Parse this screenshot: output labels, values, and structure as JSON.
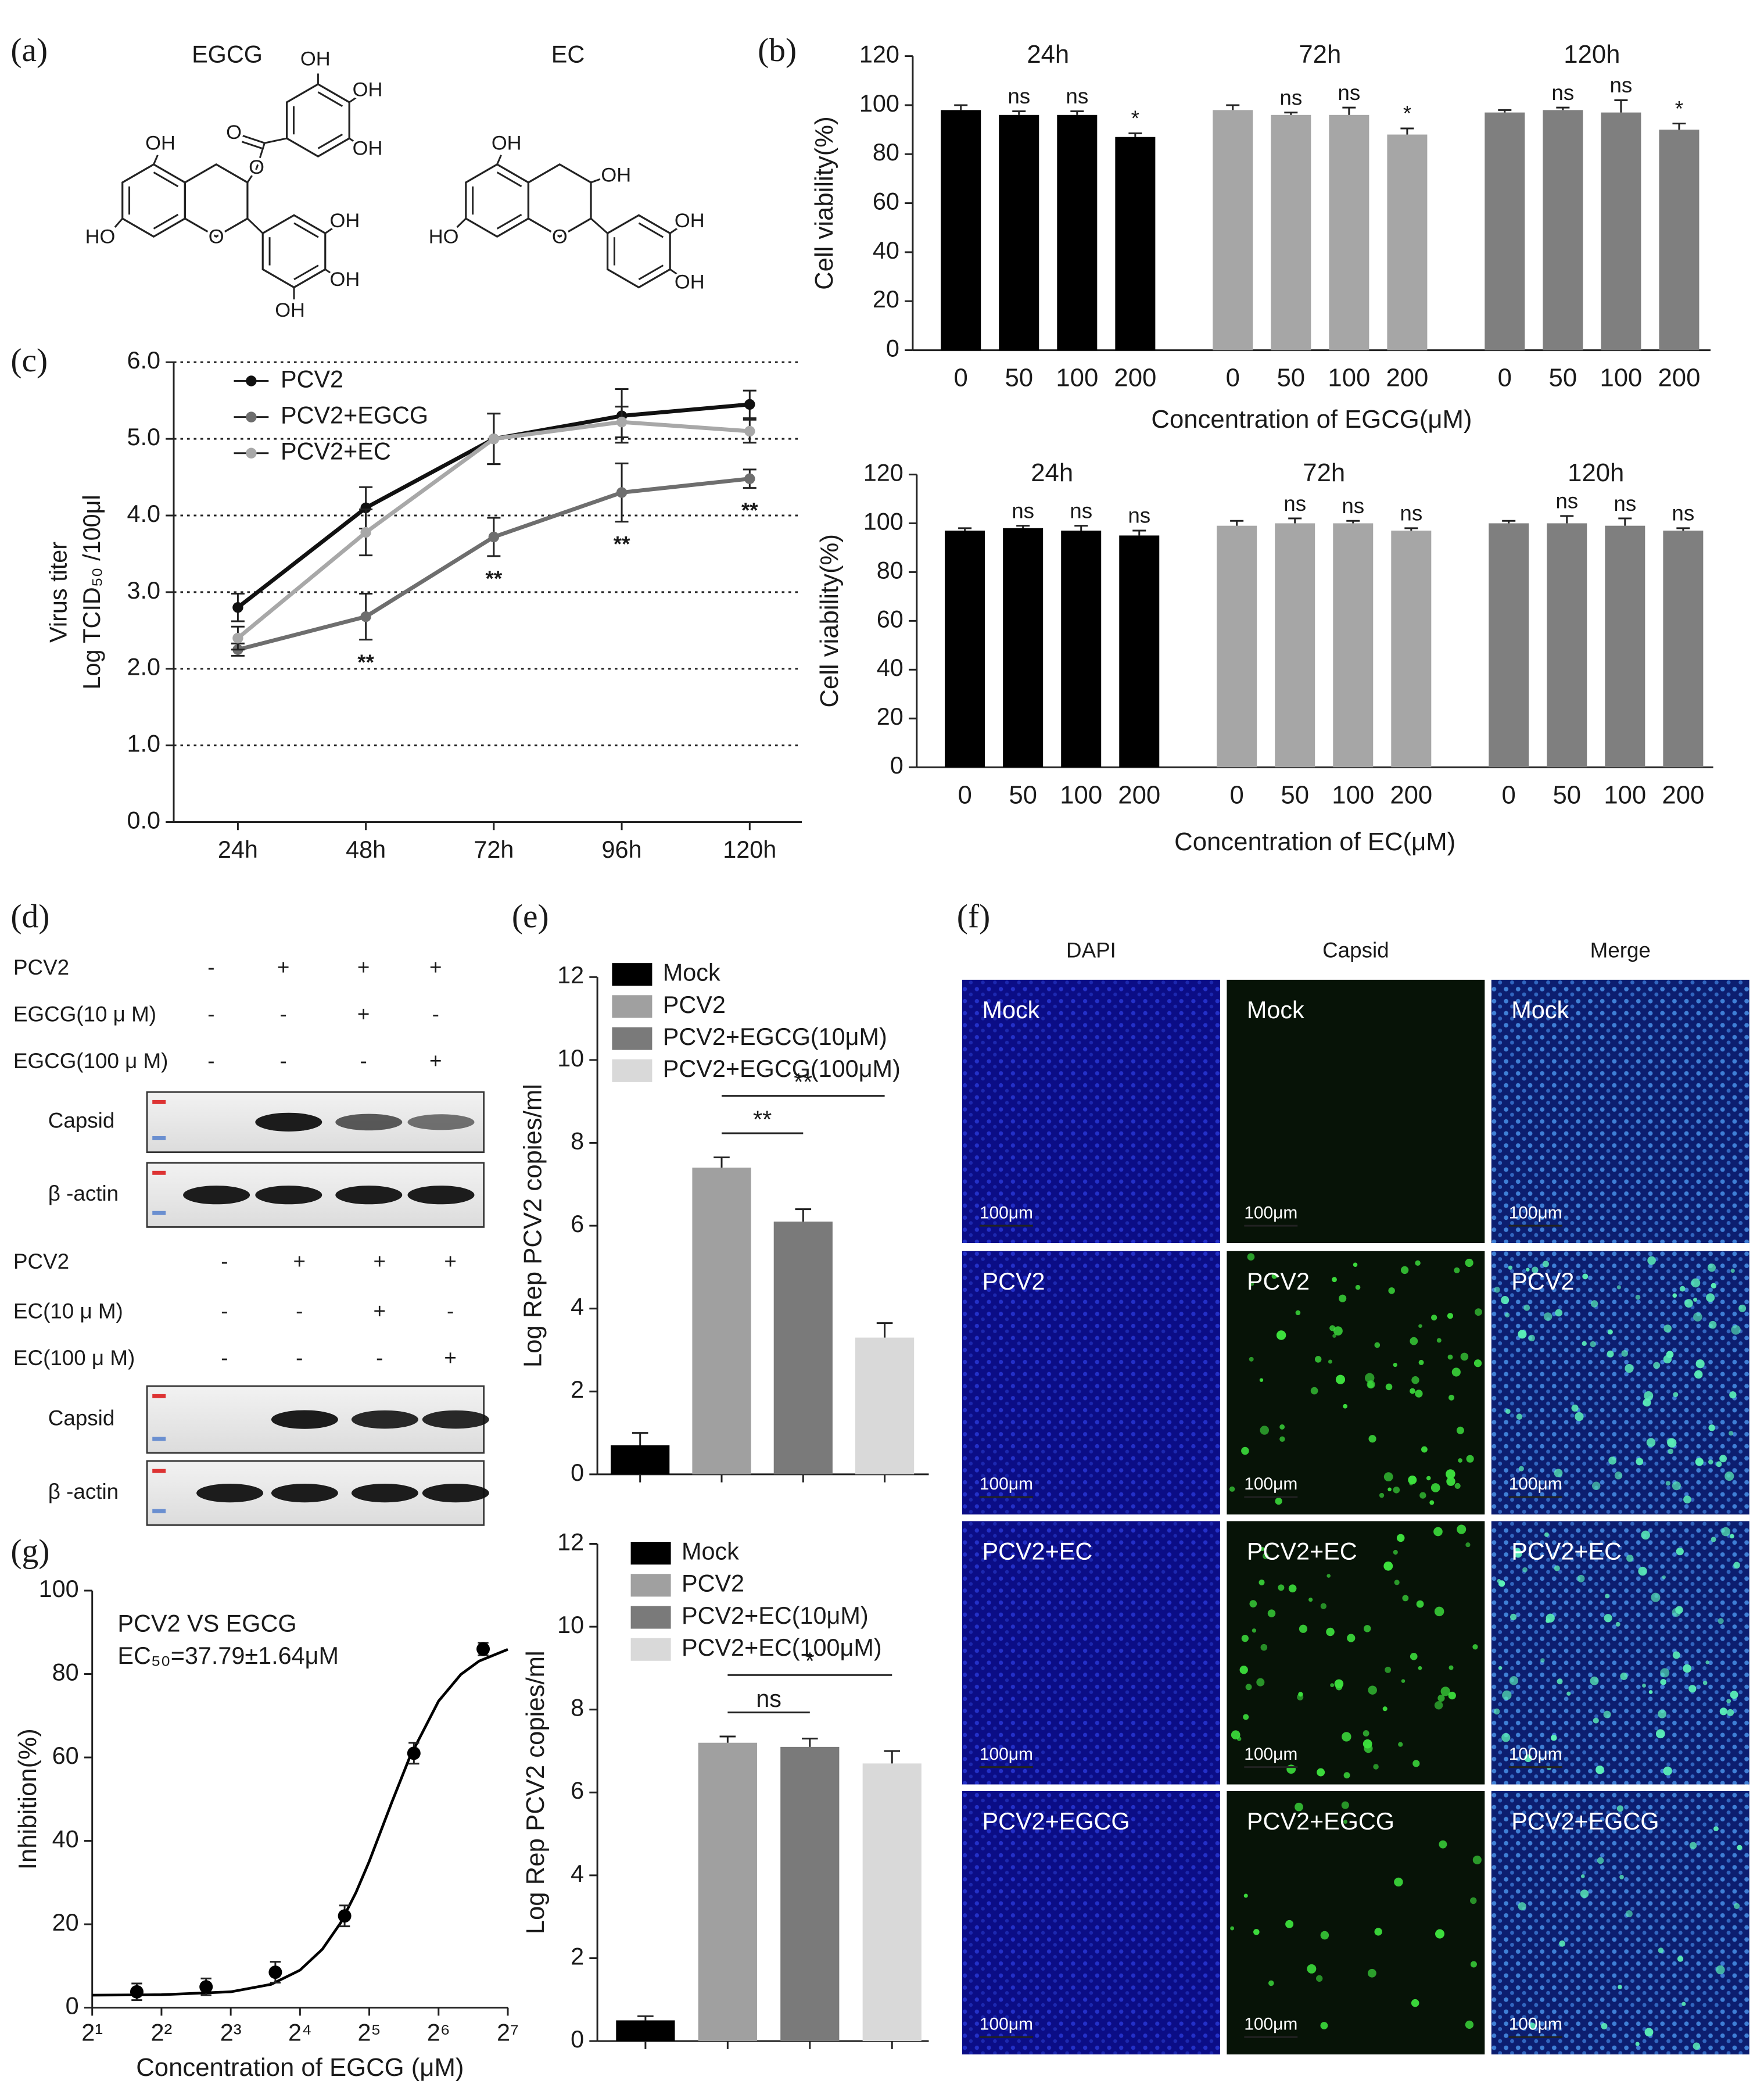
{
  "panels": [
    "(a)",
    "(b)",
    "(c)",
    "(d)",
    "(e)",
    "(f)",
    "(g)"
  ],
  "structures": [
    {
      "name": "EGCG",
      "labels": [
        "OH",
        "HO",
        "O",
        "O",
        "O",
        "OH",
        "OH",
        "OH",
        "OH",
        "OH",
        "OH"
      ]
    },
    {
      "name": "EC",
      "labels": [
        "OH",
        "HO",
        "O",
        "OH",
        "OH",
        "OH"
      ]
    }
  ],
  "western": [
    {
      "rows": [
        {
          "label": "PCV2",
          "signs": [
            "-",
            "+",
            "+",
            "+"
          ]
        },
        {
          "label": "EGCG(10 μ M)",
          "signs": [
            "-",
            "-",
            "+",
            "-"
          ]
        },
        {
          "label": "EGCG(100 μ M)",
          "signs": [
            "-",
            "-",
            "-",
            "+"
          ]
        }
      ],
      "blots": [
        "Capsid",
        "β -actin"
      ]
    },
    {
      "rows": [
        {
          "label": "PCV2",
          "signs": [
            "-",
            "+",
            "+",
            "+"
          ]
        },
        {
          "label": "EC(10 μ M)",
          "signs": [
            "-",
            "-",
            "+",
            "-"
          ]
        },
        {
          "label": "EC(100 μ M)",
          "signs": [
            "-",
            "-",
            "-",
            "+"
          ]
        }
      ],
      "blots": [
        "Capsid",
        "β -actin"
      ]
    }
  ],
  "microscopy": {
    "columns": [
      "DAPI",
      "Capsid",
      "Merge"
    ],
    "rows": [
      "Mock",
      "PCV2",
      "PCV2+EC",
      "PCV2+EGCG"
    ],
    "scale_bar": "100μm"
  },
  "chart_data": [
    {
      "type": "bar",
      "categories": [
        "0",
        "50",
        "100",
        "200"
      ],
      "series": [
        {
          "name": "24h",
          "color": "#000000",
          "values": [
            98,
            96,
            96,
            87
          ],
          "errors": [
            2,
            1.5,
            1.5,
            1.5
          ],
          "annotations": [
            null,
            "ns",
            "ns",
            "*"
          ]
        },
        {
          "name": "72h",
          "color": "#a6a6a6",
          "values": [
            98,
            96,
            96,
            88
          ],
          "errors": [
            2,
            1,
            3,
            2.5
          ],
          "annotations": [
            null,
            "ns",
            "ns",
            "*"
          ]
        },
        {
          "name": "120h",
          "color": "#7f7f7f",
          "values": [
            97,
            98,
            97,
            90
          ],
          "errors": [
            1,
            1,
            5,
            2.5
          ],
          "annotations": [
            null,
            "ns",
            "ns",
            "*"
          ]
        }
      ],
      "ylabel": "Cell viability(%)",
      "xlabel": "Concentration of EGCG(μM)",
      "ylim": [
        0,
        120
      ],
      "yticks": [
        0,
        20,
        40,
        60,
        80,
        100,
        120
      ]
    },
    {
      "type": "bar",
      "categories": [
        "0",
        "50",
        "100",
        "200"
      ],
      "series": [
        {
          "name": "24h",
          "color": "#000000",
          "values": [
            97,
            98,
            97,
            95
          ],
          "errors": [
            1,
            1,
            2,
            2
          ],
          "annotations": [
            null,
            "ns",
            "ns",
            "ns"
          ]
        },
        {
          "name": "72h",
          "color": "#a6a6a6",
          "values": [
            99,
            100,
            100,
            97
          ],
          "errors": [
            2,
            2,
            1,
            1
          ],
          "annotations": [
            null,
            "ns",
            "ns",
            "ns"
          ]
        },
        {
          "name": "120h",
          "color": "#7f7f7f",
          "values": [
            100,
            100,
            99,
            97
          ],
          "errors": [
            1,
            3,
            3,
            1
          ],
          "annotations": [
            null,
            "ns",
            "ns",
            "ns"
          ]
        }
      ],
      "ylabel": "Cell viability(%)",
      "xlabel": "Concentration of EC(μM)",
      "ylim": [
        0,
        120
      ],
      "yticks": [
        0,
        20,
        40,
        60,
        80,
        100,
        120
      ]
    },
    {
      "type": "line",
      "categories": [
        "24h",
        "48h",
        "72h",
        "96h",
        "120h"
      ],
      "series": [
        {
          "name": "PCV2",
          "color": "#111111",
          "values": [
            2.8,
            4.1,
            5.0,
            5.3,
            5.45
          ],
          "errors": [
            0.18,
            0.27,
            0.33,
            0.35,
            0.18
          ]
        },
        {
          "name": "PCV2+EGCG",
          "color": "#6e6e6e",
          "values": [
            2.25,
            2.68,
            3.72,
            4.3,
            4.48
          ],
          "errors": [
            0.08,
            0.3,
            0.25,
            0.38,
            0.12
          ],
          "annotations": [
            null,
            "**",
            "**",
            "**",
            "**"
          ]
        },
        {
          "name": "PCV2+EC",
          "color": "#a8a8a8",
          "values": [
            2.4,
            3.78,
            5.0,
            5.22,
            5.1
          ],
          "errors": [
            0.15,
            0.3,
            0.33,
            0.2,
            0.15
          ]
        }
      ],
      "ylabel": [
        "Virus titer",
        "Log TCID₅₀ /100μl"
      ],
      "ylim": [
        0,
        6
      ],
      "yticks": [
        {
          "value": 0,
          "label": "0.0"
        },
        {
          "value": 1,
          "label": "1.0"
        },
        {
          "value": 2,
          "label": "2.0"
        },
        {
          "value": 3,
          "label": "3.0"
        },
        {
          "value": 4,
          "label": "4.0"
        },
        {
          "value": 5,
          "label": "5.0"
        },
        {
          "value": 6,
          "label": "6.0"
        }
      ],
      "grid": true,
      "legend": "upper left"
    },
    {
      "type": "bar",
      "series": [
        {
          "name": "Mock",
          "color": "#000000",
          "values": [
            0.7
          ],
          "errors": [
            0.3
          ]
        },
        {
          "name": "PCV2",
          "color": "#a0a0a0",
          "values": [
            7.4
          ],
          "errors": [
            0.25
          ]
        },
        {
          "name": "PCV2+EGCG(10μM)",
          "color": "#7a7a7a",
          "values": [
            6.1
          ],
          "errors": [
            0.3
          ]
        },
        {
          "name": "PCV2+EGCG(100μM)",
          "color": "#d9d9d9",
          "values": [
            3.3
          ],
          "errors": [
            0.35
          ]
        }
      ],
      "ylabel": "Log Rep PCV2 copies/ml",
      "ylim": [
        0,
        12
      ],
      "yticks": [
        0,
        2,
        4,
        6,
        8,
        10,
        12
      ],
      "legend": "upper left",
      "comparisons": [
        {
          "label": "**",
          "between": [
            "PCV2",
            "PCV2+EGCG(10μM)"
          ]
        },
        {
          "label": "**",
          "between": [
            "PCV2",
            "PCV2+EGCG(100μM)"
          ]
        }
      ]
    },
    {
      "type": "bar",
      "series": [
        {
          "name": "Mock",
          "color": "#000000",
          "values": [
            0.5
          ],
          "errors": [
            0.1
          ]
        },
        {
          "name": "PCV2",
          "color": "#a0a0a0",
          "values": [
            7.2
          ],
          "errors": [
            0.15
          ]
        },
        {
          "name": "PCV2+EC(10μM)",
          "color": "#7a7a7a",
          "values": [
            7.1
          ],
          "errors": [
            0.2
          ]
        },
        {
          "name": "PCV2+EC(100μM)",
          "color": "#d9d9d9",
          "values": [
            6.7
          ],
          "errors": [
            0.3
          ]
        }
      ],
      "ylabel": "Log Rep PCV2 copies/ml",
      "ylim": [
        0,
        12
      ],
      "yticks": [
        0,
        2,
        4,
        6,
        8,
        10,
        12
      ],
      "legend": "upper left",
      "comparisons": [
        {
          "label": "ns",
          "between": [
            "PCV2",
            "PCV2+EC(10μM)"
          ]
        },
        {
          "label": "*",
          "between": [
            "PCV2",
            "PCV2+EC(100μM)"
          ]
        }
      ]
    },
    {
      "type": "scatter",
      "title": "PCV2 VS EGCG",
      "subtitle": "EC₅₀=37.79±1.64μM",
      "x": [
        3.125,
        6.25,
        12.5,
        25,
        50,
        100
      ],
      "values": [
        3.8,
        5,
        8.5,
        22,
        61,
        86
      ],
      "errors": [
        2,
        2,
        2.5,
        2.5,
        2.5,
        1.5
      ],
      "color": "#000000",
      "fit": {
        "x": [
          2,
          4,
          8,
          12,
          16,
          20,
          24,
          28,
          32,
          40,
          48,
          64,
          80,
          96,
          128
        ],
        "values": [
          3.0,
          3.1,
          3.8,
          5.6,
          9.0,
          14.0,
          20.3,
          27.6,
          35.1,
          49.1,
          60.1,
          73.5,
          79.9,
          83.1,
          85.9
        ]
      },
      "xscale": "log",
      "xlim": [
        2,
        128
      ],
      "xticks": [
        {
          "value": 2,
          "label": "2¹"
        },
        {
          "value": 4,
          "label": "2²"
        },
        {
          "value": 8,
          "label": "2³"
        },
        {
          "value": 16,
          "label": "2⁴"
        },
        {
          "value": 32,
          "label": "2⁵"
        },
        {
          "value": 64,
          "label": "2⁶"
        },
        {
          "value": 128,
          "label": "2⁷"
        }
      ],
      "ylim": [
        0,
        100
      ],
      "yticks": [
        0,
        20,
        40,
        60,
        80,
        100
      ],
      "xlabel": "Concentration of EGCG (μM)",
      "ylabel": "Inhibition(%)"
    }
  ]
}
